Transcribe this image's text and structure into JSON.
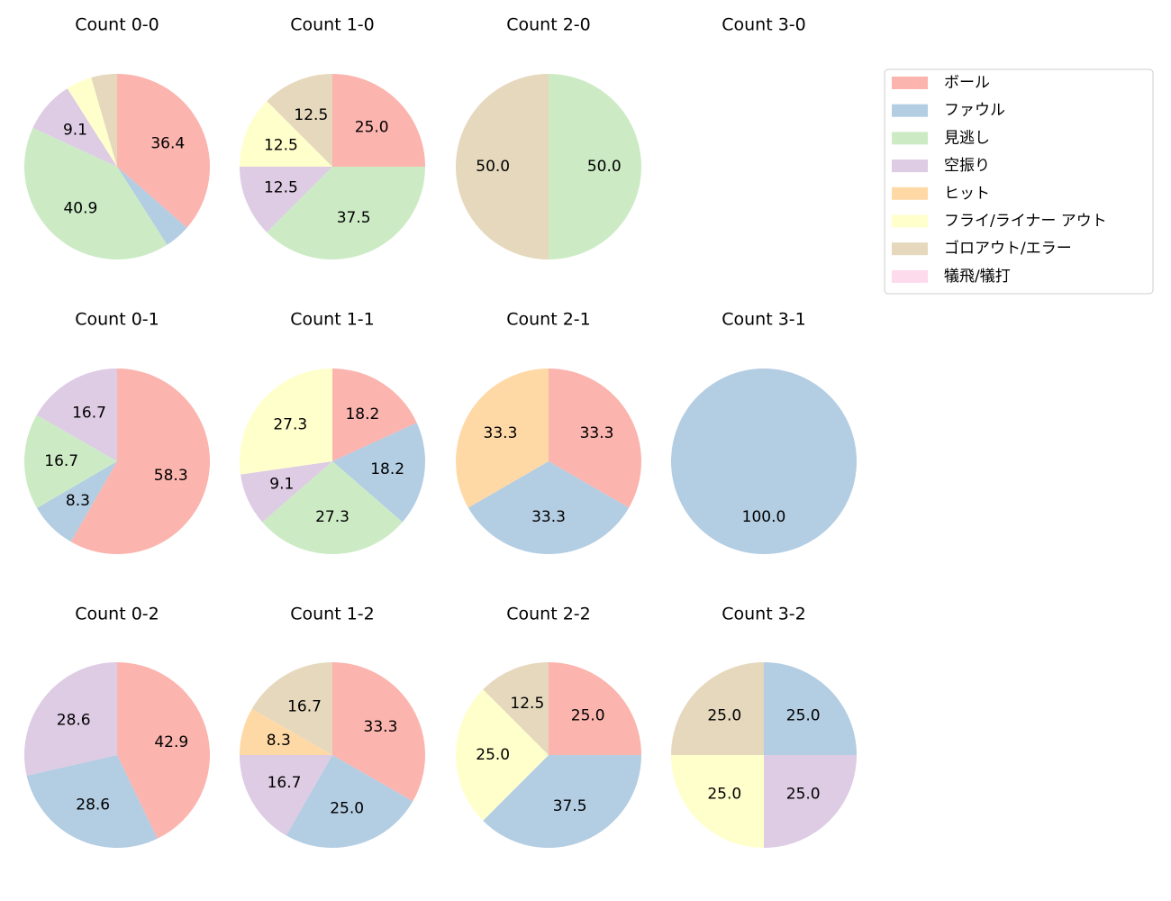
{
  "legend": {
    "labels": [
      "ボール",
      "ファウル",
      "見逃し",
      "空振り",
      "ヒット",
      "フライ/ライナー アウト",
      "ゴロアウト/エラー",
      "犠飛/犠打"
    ],
    "colors": [
      "#fbb4ae",
      "#b3cde3",
      "#ccebc5",
      "#decbe4",
      "#fed9a6",
      "#ffffcc",
      "#e5d8bd",
      "#fddaec"
    ]
  },
  "chart_data": [
    {
      "type": "pie",
      "title": "Count 0-0",
      "values": [
        36.4,
        4.5,
        40.9,
        9.1,
        null,
        4.5,
        4.5,
        null
      ],
      "value_labels": [
        "36.4",
        null,
        "40.9",
        "9.1",
        null,
        null,
        null,
        null
      ]
    },
    {
      "type": "pie",
      "title": "Count 1-0",
      "values": [
        25.0,
        null,
        37.5,
        12.5,
        null,
        12.5,
        12.5,
        null
      ],
      "value_labels": [
        "25.0",
        null,
        "37.5",
        "12.5",
        null,
        "12.5",
        "12.5",
        null
      ]
    },
    {
      "type": "pie",
      "title": "Count 2-0",
      "values": [
        null,
        null,
        50.0,
        null,
        null,
        null,
        50.0,
        null
      ],
      "value_labels": [
        null,
        null,
        "50.0",
        null,
        null,
        null,
        "50.0",
        null
      ]
    },
    {
      "type": "pie",
      "title": "Count 3-0"
    },
    {
      "type": "pie",
      "title": "Count 0-1",
      "values": [
        58.3,
        8.3,
        16.7,
        16.7,
        null,
        null,
        null,
        null
      ],
      "value_labels": [
        "58.3",
        "8.3",
        "16.7",
        "16.7",
        null,
        null,
        null,
        null
      ]
    },
    {
      "type": "pie",
      "title": "Count 1-1",
      "values": [
        18.2,
        18.2,
        27.3,
        9.1,
        null,
        27.3,
        null,
        null
      ],
      "value_labels": [
        "18.2",
        "18.2",
        "27.3",
        "9.1",
        null,
        "27.3",
        null,
        null
      ]
    },
    {
      "type": "pie",
      "title": "Count 2-1",
      "values": [
        33.3,
        33.3,
        null,
        null,
        33.3,
        null,
        null,
        null
      ],
      "value_labels": [
        "33.3",
        "33.3",
        null,
        null,
        "33.3",
        null,
        null,
        null
      ]
    },
    {
      "type": "pie",
      "title": "Count 3-1",
      "values": [
        null,
        100.0,
        null,
        null,
        null,
        null,
        null,
        null
      ],
      "value_labels": [
        null,
        "100.0",
        null,
        null,
        null,
        null,
        null,
        null
      ]
    },
    {
      "type": "pie",
      "title": "Count 0-2",
      "values": [
        42.9,
        28.6,
        null,
        28.6,
        null,
        null,
        null,
        null
      ],
      "value_labels": [
        "42.9",
        "28.6",
        null,
        "28.6",
        null,
        null,
        null,
        null
      ]
    },
    {
      "type": "pie",
      "title": "Count 1-2",
      "values": [
        33.3,
        25.0,
        null,
        16.7,
        8.3,
        null,
        16.7,
        null
      ],
      "value_labels": [
        "33.3",
        "25.0",
        null,
        "16.7",
        "8.3",
        null,
        "16.7",
        null
      ]
    },
    {
      "type": "pie",
      "title": "Count 2-2",
      "values": [
        25.0,
        37.5,
        null,
        null,
        null,
        25.0,
        12.5,
        null
      ],
      "value_labels": [
        "25.0",
        "37.5",
        null,
        null,
        null,
        "25.0",
        "12.5",
        null
      ]
    },
    {
      "type": "pie",
      "title": "Count 3-2",
      "values": [
        null,
        25.0,
        null,
        25.0,
        null,
        25.0,
        25.0,
        null
      ],
      "value_labels": [
        null,
        "25.0",
        null,
        "25.0",
        null,
        "25.0",
        "25.0",
        null
      ]
    }
  ]
}
